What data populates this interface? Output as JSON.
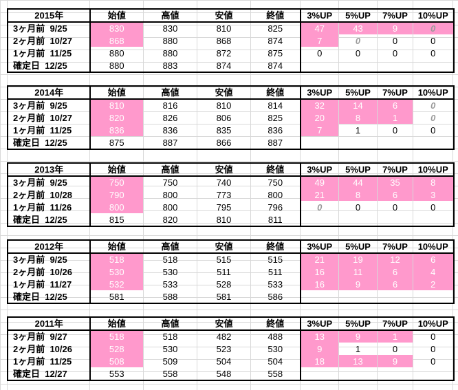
{
  "columns": [
    "始値",
    "高値",
    "安値",
    "終値",
    "3%UP",
    "5%UP",
    "7%UP",
    "10%UP"
  ],
  "colors": {
    "highlight": "#ff99cc",
    "grid": "#d8d8d8",
    "border": "#000000"
  },
  "tables": [
    {
      "year": "2015年",
      "rows": [
        {
          "label": "3ヶ月前 9/25",
          "open": "830",
          "high": "830",
          "low": "810",
          "close": "825",
          "p3": "47",
          "p5": "43",
          "p7": "9",
          "p10": "0"
        },
        {
          "label": "2ヶ月前 10/27",
          "open": "868",
          "high": "880",
          "low": "868",
          "close": "874",
          "p3": "7",
          "p5": "0",
          "p7": "0",
          "p10": "0"
        },
        {
          "label": "1ヶ月前 11/25",
          "open": "880",
          "high": "880",
          "low": "872",
          "close": "875",
          "p3": "0",
          "p5": "0",
          "p7": "0",
          "p10": "0"
        },
        {
          "label": "確定日 12/25",
          "open": "880",
          "high": "883",
          "low": "874",
          "close": "874",
          "p3": "",
          "p5": "",
          "p7": "",
          "p10": ""
        }
      ]
    },
    {
      "year": "2014年",
      "rows": [
        {
          "label": "3ヶ月前 9/25",
          "open": "810",
          "high": "816",
          "low": "810",
          "close": "814",
          "p3": "32",
          "p5": "14",
          "p7": "6",
          "p10": "0"
        },
        {
          "label": "2ヶ月前 10/27",
          "open": "820",
          "high": "826",
          "low": "806",
          "close": "825",
          "p3": "20",
          "p5": "8",
          "p7": "1",
          "p10": "0"
        },
        {
          "label": "1ヶ月前 11/25",
          "open": "836",
          "high": "836",
          "low": "835",
          "close": "836",
          "p3": "7",
          "p5": "1",
          "p7": "0",
          "p10": "0"
        },
        {
          "label": "確定日 12/25",
          "open": "875",
          "high": "887",
          "low": "866",
          "close": "887",
          "p3": "",
          "p5": "",
          "p7": "",
          "p10": ""
        }
      ]
    },
    {
      "year": "2013年",
      "rows": [
        {
          "label": "3ヶ月前 9/25",
          "open": "750",
          "high": "750",
          "low": "740",
          "close": "750",
          "p3": "49",
          "p5": "44",
          "p7": "35",
          "p10": "8"
        },
        {
          "label": "2ヶ月前 10/28",
          "open": "790",
          "high": "800",
          "low": "773",
          "close": "800",
          "p3": "21",
          "p5": "8",
          "p7": "6",
          "p10": "3"
        },
        {
          "label": "1ヶ月前 11/26",
          "open": "800",
          "high": "800",
          "low": "795",
          "close": "796",
          "p3": "0",
          "p5": "0",
          "p7": "0",
          "p10": "0"
        },
        {
          "label": "確定日 12/25",
          "open": "815",
          "high": "820",
          "low": "810",
          "close": "811",
          "p3": "",
          "p5": "",
          "p7": "",
          "p10": ""
        }
      ]
    },
    {
      "year": "2012年",
      "rows": [
        {
          "label": "3ヶ月前 9/25",
          "open": "518",
          "high": "518",
          "low": "515",
          "close": "515",
          "p3": "21",
          "p5": "19",
          "p7": "12",
          "p10": "6"
        },
        {
          "label": "2ヶ月前 10/26",
          "open": "530",
          "high": "530",
          "low": "511",
          "close": "511",
          "p3": "16",
          "p5": "11",
          "p7": "6",
          "p10": "4"
        },
        {
          "label": "1ヶ月前 11/27",
          "open": "532",
          "high": "533",
          "low": "528",
          "close": "533",
          "p3": "16",
          "p5": "9",
          "p7": "6",
          "p10": "2"
        },
        {
          "label": "確定日 12/25",
          "open": "581",
          "high": "588",
          "low": "581",
          "close": "586",
          "p3": "",
          "p5": "",
          "p7": "",
          "p10": ""
        }
      ]
    },
    {
      "year": "2011年",
      "rows": [
        {
          "label": "3ヶ月前 9/27",
          "open": "518",
          "high": "518",
          "low": "482",
          "close": "488",
          "p3": "13",
          "p5": "9",
          "p7": "1",
          "p10": "0"
        },
        {
          "label": "2ヶ月前 10/26",
          "open": "528",
          "high": "530",
          "low": "523",
          "close": "530",
          "p3": "9",
          "p5": "1",
          "p7": "0",
          "p10": "0"
        },
        {
          "label": "1ヶ月前 11/25",
          "open": "508",
          "high": "509",
          "low": "504",
          "close": "504",
          "p3": "18",
          "p5": "13",
          "p7": "9",
          "p10": "0"
        },
        {
          "label": "確定日 12/27",
          "open": "553",
          "high": "558",
          "low": "548",
          "close": "558",
          "p3": "",
          "p5": "",
          "p7": "",
          "p10": ""
        }
      ]
    }
  ]
}
